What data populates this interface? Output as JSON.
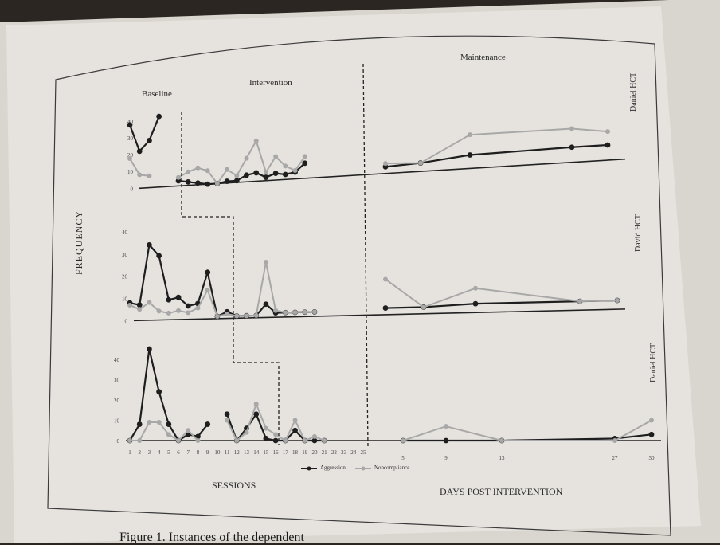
{
  "figure": {
    "phases": [
      "Baseline",
      "Intervention",
      "Maintenance"
    ],
    "y_axis_label": "FREQUENCY",
    "x_axis_label_sessions": "SESSIONS",
    "x_axis_label_days": "DAYS POST INTERVENTION",
    "legend": [
      "Aggression",
      "Noncompliance"
    ],
    "caption": "Figure 1. Instances of the dependent"
  },
  "colors": {
    "paper": "#e6e3df",
    "table": "#2b2622",
    "primary_series": "#1e1e1e",
    "secondary_series": "#a8a8a8",
    "phase_line": "#222222"
  },
  "chart_data": [
    {
      "type": "line",
      "panel_label": "Daniel HCT",
      "x_sessions": [
        1,
        2,
        3,
        4,
        5,
        6,
        7,
        8,
        9,
        10,
        11,
        12,
        13,
        14,
        15,
        16,
        17,
        18,
        19,
        20,
        21,
        22,
        23,
        24,
        25
      ],
      "x_days": [
        5,
        9,
        13,
        27,
        30
      ],
      "y_ticks": [
        0,
        10,
        20,
        30,
        40
      ],
      "series": [
        {
          "name": "Aggression",
          "sessions": [
            38,
            22,
            28,
            42,
            null,
            3,
            2,
            1,
            0,
            0,
            1,
            1,
            4,
            5,
            2,
            4,
            3,
            4,
            9,
            null,
            null,
            null,
            null,
            null,
            null
          ],
          "days": [
            4,
            5,
            8,
            9,
            9
          ]
        },
        {
          "name": "Noncompliance",
          "sessions": [
            18,
            8,
            7,
            null,
            null,
            5,
            8,
            10,
            8,
            0,
            8,
            4,
            14,
            24,
            5,
            14,
            8,
            5,
            13,
            null,
            null,
            null,
            null,
            null,
            null
          ],
          "days": [
            6,
            5,
            20,
            20,
            17
          ]
        }
      ]
    },
    {
      "type": "line",
      "panel_label": "David HCT",
      "x_sessions": [
        1,
        2,
        3,
        4,
        5,
        6,
        7,
        8,
        9,
        10,
        11,
        12,
        13,
        14,
        15,
        16,
        17,
        18,
        19,
        20,
        21,
        22,
        23,
        24,
        25
      ],
      "x_days": [
        5,
        9,
        13,
        27,
        30
      ],
      "y_ticks": [
        0,
        10,
        20,
        30,
        40
      ],
      "series": [
        {
          "name": "Aggression",
          "sessions": [
            8,
            7,
            34,
            29,
            9,
            10,
            6,
            7,
            21,
            1,
            3,
            1,
            1,
            1,
            6,
            2,
            2,
            2,
            2,
            2,
            null,
            null,
            null,
            null,
            null
          ],
          "days": [
            3,
            3,
            4,
            4,
            4
          ]
        },
        {
          "name": "Noncompliance",
          "sessions": [
            7,
            5,
            8,
            4,
            3,
            4,
            3,
            5,
            13,
            1,
            2,
            1,
            1,
            1,
            25,
            3,
            2,
            2,
            2,
            2,
            null,
            null,
            null,
            null,
            null
          ],
          "days": [
            16,
            3,
            11,
            4,
            4
          ]
        }
      ]
    },
    {
      "type": "line",
      "panel_label": "Daniel HCT",
      "x_sessions": [
        1,
        2,
        3,
        4,
        5,
        6,
        7,
        8,
        9,
        10,
        11,
        12,
        13,
        14,
        15,
        16,
        17,
        18,
        19,
        20,
        21,
        22,
        23,
        24,
        25
      ],
      "x_days": [
        5,
        9,
        13,
        27,
        30
      ],
      "y_ticks": [
        0,
        10,
        20,
        30,
        40
      ],
      "series": [
        {
          "name": "Aggression",
          "sessions": [
            0,
            8,
            45,
            24,
            8,
            0,
            3,
            2,
            8,
            null,
            13,
            0,
            6,
            13,
            1,
            0,
            0,
            5,
            0,
            0,
            0,
            null,
            null,
            null,
            null
          ],
          "days": [
            0,
            0,
            0,
            1,
            3
          ]
        },
        {
          "name": "Noncompliance",
          "sessions": [
            0,
            0,
            9,
            9,
            3,
            0,
            5,
            0,
            null,
            null,
            10,
            0,
            4,
            18,
            6,
            3,
            0,
            10,
            0,
            2,
            0,
            null,
            null,
            null,
            null
          ],
          "days": [
            0,
            7,
            0,
            0,
            10
          ]
        }
      ]
    }
  ]
}
